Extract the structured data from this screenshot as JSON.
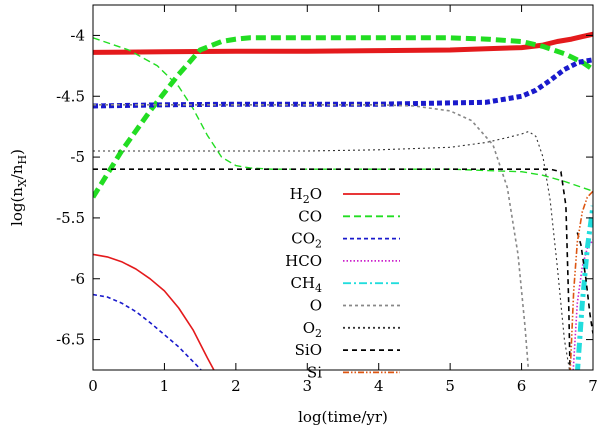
{
  "chart_data": {
    "type": "line",
    "title": "",
    "xlabel": "log(time/yr)",
    "ylabel": "log(n_X/n_H)",
    "xlim": [
      0,
      7
    ],
    "ylim": [
      -6.75,
      -3.75
    ],
    "xticks": [
      0,
      1,
      2,
      3,
      4,
      5,
      6,
      7
    ],
    "yticks": [
      -4,
      -4.5,
      -5,
      -5.5,
      -6,
      -6.5
    ],
    "ytick_labels": [
      "-4",
      "-4.5",
      "-5",
      "-5.5",
      "-6",
      "-6.5"
    ],
    "legend_position": "center",
    "colors": {
      "red": "#e41a1c",
      "green": "#22dd22",
      "blue": "#1a1acc",
      "magenta": "#cc22cc",
      "cyan": "#22dddd",
      "gray": "#888888",
      "darkgray": "#333333",
      "black": "#000000",
      "orange": "#dd5511"
    },
    "legend": [
      {
        "main": "H",
        "sub": "2",
        "tail": "O",
        "color": "#e41a1c",
        "dash": ""
      },
      {
        "main": "CO",
        "sub": "",
        "tail": "",
        "color": "#22dd22",
        "dash": "7,4"
      },
      {
        "main": "CO",
        "sub": "2",
        "tail": "",
        "color": "#1a1acc",
        "dash": "4,3"
      },
      {
        "main": "HCO",
        "sub": "",
        "tail": "",
        "color": "#cc22cc",
        "dash": "1.5,2"
      },
      {
        "main": "CH",
        "sub": "4",
        "tail": "",
        "color": "#22dddd",
        "dash": "8,3,2,3"
      },
      {
        "main": "O",
        "sub": "",
        "tail": "",
        "color": "#888888",
        "dash": "3,3"
      },
      {
        "main": "O",
        "sub": "2",
        "tail": "",
        "color": "#333333",
        "dash": "2,3"
      },
      {
        "main": "SiO",
        "sub": "",
        "tail": "",
        "color": "#000000",
        "dash": "5,4"
      },
      {
        "main": "Si",
        "sub": "",
        "tail": "",
        "color": "#dd5511",
        "dash": "6,2,1.5,2,1.5,2"
      }
    ],
    "series": [
      {
        "name": "H2O gas (thin)",
        "color": "#e41a1c",
        "width": 1.6,
        "dash": "",
        "x": [
          0,
          0.2,
          0.4,
          0.6,
          0.8,
          1.0,
          1.2,
          1.4,
          1.6,
          1.72
        ],
        "y": [
          -5.8,
          -5.82,
          -5.86,
          -5.92,
          -6.0,
          -6.1,
          -6.24,
          -6.42,
          -6.65,
          -6.78
        ]
      },
      {
        "name": "H2O ice (thick)",
        "color": "#e41a1c",
        "width": 5,
        "dash": "",
        "x": [
          0,
          1,
          2,
          3,
          4,
          5,
          5.5,
          6,
          6.3,
          6.5,
          6.7,
          6.85,
          7
        ],
        "y": [
          -4.14,
          -4.135,
          -4.13,
          -4.13,
          -4.125,
          -4.12,
          -4.11,
          -4.1,
          -4.08,
          -4.05,
          -4.03,
          -4.01,
          -3.99
        ]
      },
      {
        "name": "CO gas (thin)",
        "color": "#22dd22",
        "width": 1.4,
        "dash": "7,4",
        "x": [
          0,
          0.5,
          0.9,
          1.2,
          1.4,
          1.6,
          1.8,
          2.0,
          2.2,
          2.5,
          3,
          4,
          5,
          5.5,
          6,
          6.3,
          6.6,
          7
        ],
        "y": [
          -4.02,
          -4.12,
          -4.25,
          -4.42,
          -4.6,
          -4.82,
          -5.0,
          -5.07,
          -5.09,
          -5.1,
          -5.1,
          -5.1,
          -5.1,
          -5.11,
          -5.12,
          -5.15,
          -5.2,
          -5.28
        ]
      },
      {
        "name": "CO ice (thick)",
        "color": "#22dd22",
        "width": 5,
        "dash": "10,5",
        "x": [
          0,
          0.4,
          0.8,
          1.2,
          1.5,
          1.8,
          2.0,
          2.2,
          2.5,
          3,
          4,
          5,
          5.5,
          6,
          6.3,
          6.6,
          6.85,
          7
        ],
        "y": [
          -5.33,
          -4.95,
          -4.62,
          -4.32,
          -4.12,
          -4.05,
          -4.03,
          -4.02,
          -4.02,
          -4.02,
          -4.02,
          -4.02,
          -4.03,
          -4.05,
          -4.09,
          -4.15,
          -4.22,
          -4.28
        ]
      },
      {
        "name": "CO2 gas (thin)",
        "color": "#1a1acc",
        "width": 1.6,
        "dash": "4,3",
        "x": [
          0,
          0.2,
          0.4,
          0.6,
          0.8,
          1.0,
          1.2,
          1.4,
          1.5,
          1.55
        ],
        "y": [
          -6.13,
          -6.15,
          -6.2,
          -6.27,
          -6.36,
          -6.46,
          -6.56,
          -6.68,
          -6.74,
          -6.78
        ]
      },
      {
        "name": "CO2 ice (thick)",
        "color": "#1a1acc",
        "width": 5,
        "dash": "5,3",
        "x": [
          0,
          1,
          2,
          3,
          4,
          5,
          5.5,
          6,
          6.2,
          6.4,
          6.6,
          6.8,
          7
        ],
        "y": [
          -4.58,
          -4.57,
          -4.565,
          -4.565,
          -4.565,
          -4.555,
          -4.55,
          -4.5,
          -4.45,
          -4.37,
          -4.28,
          -4.22,
          -4.2
        ]
      },
      {
        "name": "HCO",
        "color": "#cc22cc",
        "width": 1.6,
        "dash": "1.5,2",
        "x": [
          6.72,
          6.78,
          6.85,
          6.92,
          7
        ],
        "y": [
          -6.78,
          -6.2,
          -5.9,
          -5.75,
          -5.68
        ]
      },
      {
        "name": "CH4",
        "color": "#22dddd",
        "width": 5,
        "dash": "10,4,3,4",
        "x": [
          6.78,
          6.85,
          6.92,
          7
        ],
        "y": [
          -6.78,
          -6.2,
          -5.75,
          -5.4
        ]
      },
      {
        "name": "O",
        "color": "#888888",
        "width": 1.6,
        "dash": "3,3",
        "x": [
          0,
          1,
          2,
          3,
          4,
          4.5,
          5,
          5.3,
          5.6,
          5.8,
          5.95,
          6.05,
          6.1
        ],
        "y": [
          -4.57,
          -4.57,
          -4.57,
          -4.57,
          -4.57,
          -4.58,
          -4.62,
          -4.7,
          -4.9,
          -5.25,
          -5.8,
          -6.4,
          -6.78
        ]
      },
      {
        "name": "O2",
        "color": "#333333",
        "width": 1.1,
        "dash": "2,3",
        "x": [
          0,
          1,
          2,
          3,
          4,
          5,
          5.5,
          5.8,
          6.0,
          6.1,
          6.2,
          6.3,
          6.4,
          6.5,
          6.6,
          6.68
        ],
        "y": [
          -4.95,
          -4.95,
          -4.95,
          -4.95,
          -4.94,
          -4.92,
          -4.88,
          -4.84,
          -4.81,
          -4.79,
          -4.83,
          -5.0,
          -5.35,
          -5.9,
          -6.5,
          -6.78
        ]
      },
      {
        "name": "SiO",
        "color": "#000000",
        "width": 1.6,
        "dash": "5,4",
        "x": [
          0,
          1,
          2,
          3,
          4,
          5,
          6,
          6.4,
          6.55,
          6.62,
          6.66,
          6.68
        ],
        "y": [
          -5.1,
          -5.1,
          -5.1,
          -5.1,
          -5.1,
          -5.1,
          -5.1,
          -5.1,
          -5.12,
          -5.4,
          -6.2,
          -6.78
        ]
      },
      {
        "name": "SiO (late)",
        "color": "#000000",
        "width": 1.6,
        "dash": "5,4",
        "x": [
          6.78,
          6.83,
          6.9,
          6.96,
          7
        ],
        "y": [
          -5.62,
          -5.72,
          -6.0,
          -6.3,
          -6.45
        ]
      },
      {
        "name": "Si",
        "color": "#dd5511",
        "width": 1.6,
        "dash": "6,2,1.5,2,1.5,2",
        "x": [
          6.68,
          6.73,
          6.78,
          6.85,
          6.92,
          7
        ],
        "y": [
          -6.78,
          -6.1,
          -5.7,
          -5.45,
          -5.33,
          -5.28
        ]
      }
    ]
  }
}
